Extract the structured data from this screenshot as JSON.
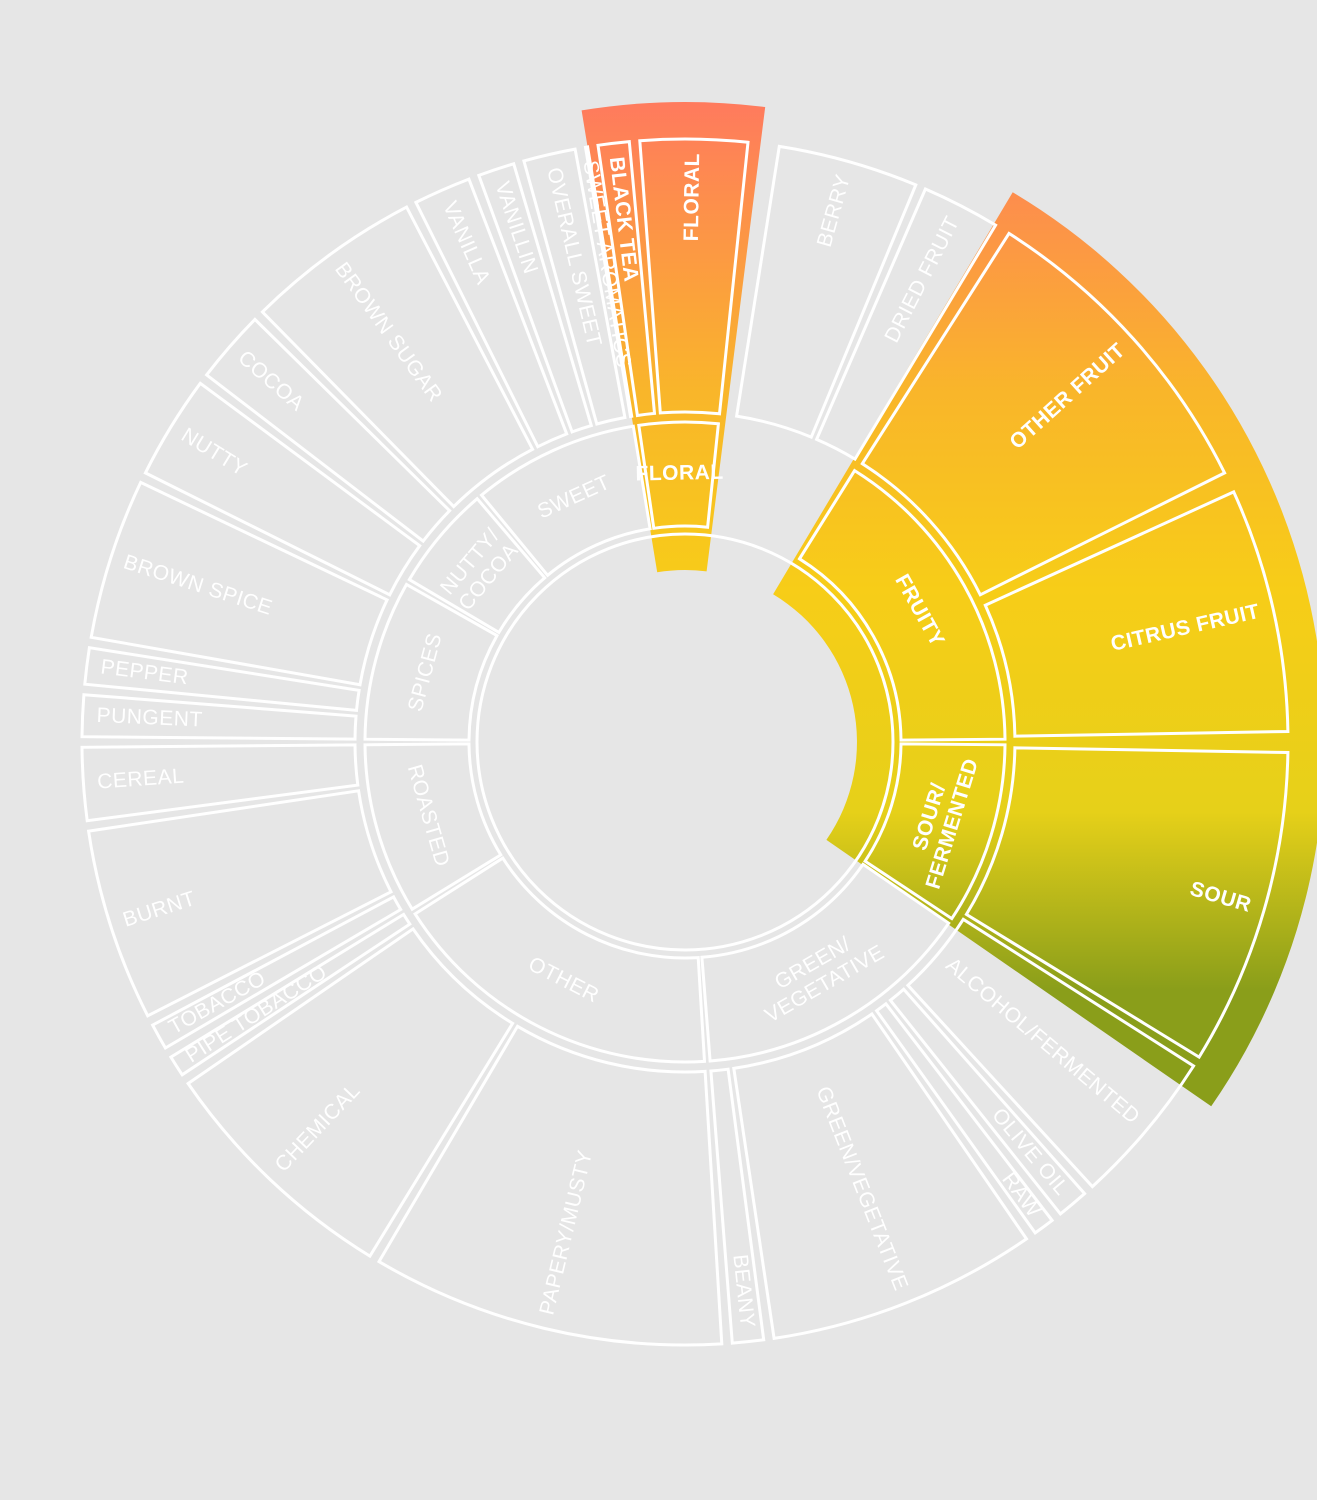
{
  "colors": {
    "background": "#e6e6e6",
    "outline": "#ffffff",
    "gradient_top": "#ff7a5e",
    "gradient_mid": "#f7c51a",
    "gradient_bottom": "#8a9e1a"
  },
  "rings": [
    {
      "ring": "inner",
      "segments": [
        {
          "label": "SWEET",
          "highlighted": false
        },
        {
          "label": "FLORAL",
          "highlighted": true
        },
        {
          "label": "FRUITY",
          "highlighted": true
        },
        {
          "label": "SOUR/ FERMENTED",
          "highlighted": true
        },
        {
          "label": "GREEN/ VEGETATIVE",
          "highlighted": false
        },
        {
          "label": "OTHER",
          "highlighted": false
        },
        {
          "label": "ROASTED",
          "highlighted": false
        },
        {
          "label": "SPICES",
          "highlighted": false
        },
        {
          "label": "NUTTY/ COCOA",
          "highlighted": false
        }
      ]
    },
    {
      "ring": "outer",
      "segments": [
        {
          "label": "BLACK TEA",
          "highlighted": true
        },
        {
          "label": "FLORAL",
          "highlighted": true
        },
        {
          "label": "BERRY",
          "highlighted": false
        },
        {
          "label": "DRIED FRUIT",
          "highlighted": false
        },
        {
          "label": "OTHER FRUIT",
          "highlighted": true
        },
        {
          "label": "CITRUS FRUIT",
          "highlighted": true
        },
        {
          "label": "SOUR",
          "highlighted": true
        },
        {
          "label": "ALCOHOL/FERMENTED",
          "highlighted": false
        },
        {
          "label": "OLIVE OIL",
          "highlighted": false
        },
        {
          "label": "RAW",
          "highlighted": false
        },
        {
          "label": "GREEN/VEGETATIVE",
          "highlighted": false
        },
        {
          "label": "BEANY",
          "highlighted": false
        },
        {
          "label": "PAPERY/MUSTY",
          "highlighted": false
        },
        {
          "label": "CHEMICAL",
          "highlighted": false
        },
        {
          "label": "PIPE TOBACCO",
          "highlighted": false
        },
        {
          "label": "TOBACCO",
          "highlighted": false
        },
        {
          "label": "BURNT",
          "highlighted": false
        },
        {
          "label": "CEREAL",
          "highlighted": false
        },
        {
          "label": "PUNGENT",
          "highlighted": false
        },
        {
          "label": "PEPPER",
          "highlighted": false
        },
        {
          "label": "BROWN SPICE",
          "highlighted": false
        },
        {
          "label": "NUTTY",
          "highlighted": false
        },
        {
          "label": "COCOA",
          "highlighted": false
        },
        {
          "label": "BROWN SUGAR",
          "highlighted": false
        },
        {
          "label": "VANILLA",
          "highlighted": false
        },
        {
          "label": "VANILLIN",
          "highlighted": false
        },
        {
          "label": "OVERALL SWEET",
          "highlighted": false
        },
        {
          "label": "SWEET AROMATICS",
          "highlighted": false
        }
      ]
    }
  ]
}
